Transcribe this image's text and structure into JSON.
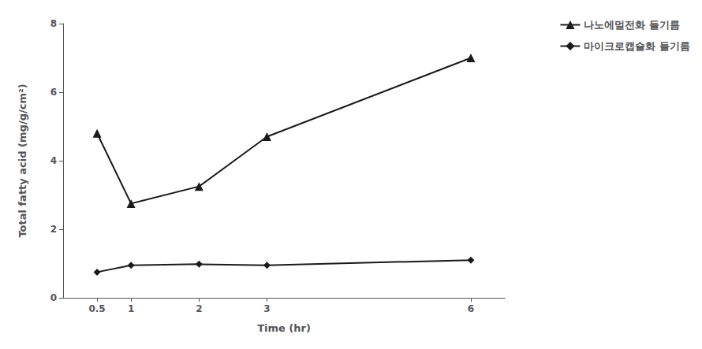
{
  "chart_data": {
    "type": "line",
    "x": [
      0.5,
      1,
      2,
      3,
      6
    ],
    "series": [
      {
        "name": "나노에멀전화 들기름",
        "color": "#1a1a1a",
        "marker": "triangle",
        "values": [
          4.8,
          2.75,
          3.25,
          4.7,
          7.0
        ]
      },
      {
        "name": "마이크로캡슐화 들기름",
        "color": "#1a1a1a",
        "marker": "diamond",
        "values": [
          0.75,
          0.95,
          0.98,
          0.95,
          1.1
        ]
      }
    ],
    "xlabel": "Time (hr)",
    "ylabel": "Total fatty acid (mg/g/cm²)",
    "xlim": [
      0,
      6.5
    ],
    "xticks": [
      0.5,
      1,
      2,
      3,
      6
    ],
    "ylim": [
      0,
      8
    ],
    "yticks": [
      0,
      2,
      4,
      6,
      8
    ],
    "legend": "upper right",
    "grid": false
  }
}
